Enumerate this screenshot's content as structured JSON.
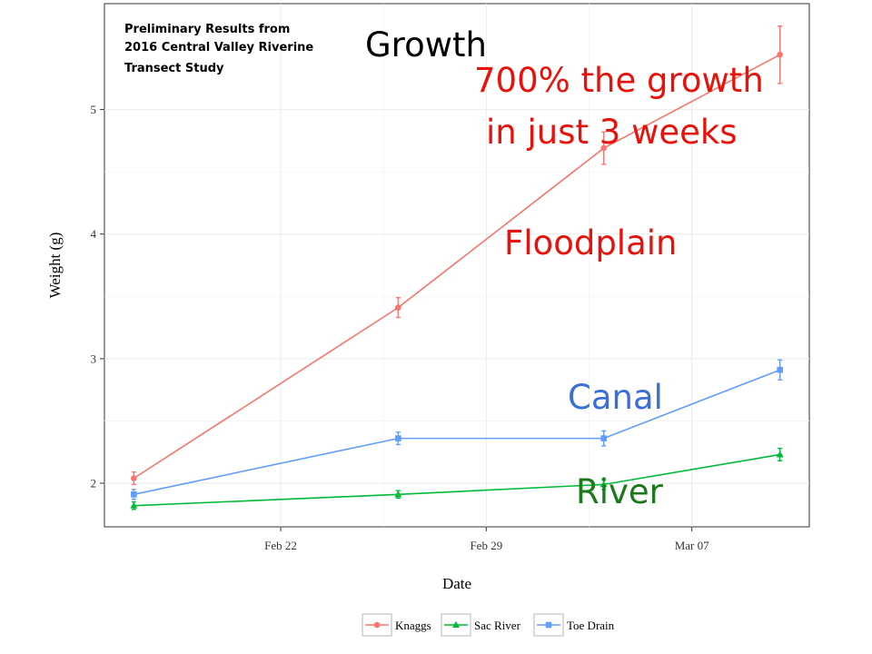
{
  "chart_data": {
    "type": "line",
    "title_lines": [
      "Preliminary Results from",
      "2016 Central Valley Riverine",
      "Transect Study"
    ],
    "xlabel": "Date",
    "ylabel": "Weight (g)",
    "x_ticks": [
      {
        "date": "2016-02-22",
        "label": "Feb 22"
      },
      {
        "date": "2016-02-29",
        "label": "Feb 29"
      },
      {
        "date": "2016-03-07",
        "label": "Mar 07"
      }
    ],
    "y_ticks": [
      2,
      3,
      4,
      5
    ],
    "xlim": [
      "2016-02-16",
      "2016-03-11"
    ],
    "ylim": [
      1.65,
      5.85
    ],
    "grid": true,
    "legend_position": "bottom",
    "series": [
      {
        "name": "Knaggs",
        "color": "#F8766D",
        "marker": "circle",
        "x": [
          "2016-02-17",
          "2016-02-26",
          "2016-03-04",
          "2016-03-10"
        ],
        "y": [
          2.04,
          3.41,
          4.69,
          5.44
        ],
        "err": [
          0.05,
          0.08,
          0.13,
          0.23
        ]
      },
      {
        "name": "Sac River",
        "color": "#00BA38",
        "marker": "triangle",
        "x": [
          "2016-02-17",
          "2016-02-26",
          "2016-03-04",
          "2016-03-10"
        ],
        "y": [
          1.82,
          1.91,
          1.99,
          2.23
        ],
        "err": [
          0.03,
          0.03,
          0.04,
          0.05
        ]
      },
      {
        "name": "Toe Drain",
        "color": "#619CFF",
        "marker": "square",
        "x": [
          "2016-02-17",
          "2016-02-26",
          "2016-03-04",
          "2016-03-10"
        ],
        "y": [
          1.91,
          2.36,
          2.36,
          2.91
        ],
        "err": [
          0.04,
          0.05,
          0.06,
          0.08
        ]
      }
    ],
    "annotations": [
      {
        "text": "Growth",
        "color": "#000000"
      },
      {
        "text": "700% the growth",
        "color": "#E8120C"
      },
      {
        "text": "in just 3 weeks",
        "color": "#E8120C"
      },
      {
        "text": "Floodplain",
        "color": "#E8120C"
      },
      {
        "text": "Canal",
        "color": "#3A6FD8"
      },
      {
        "text": "River",
        "color": "#1A7A1A"
      }
    ]
  }
}
